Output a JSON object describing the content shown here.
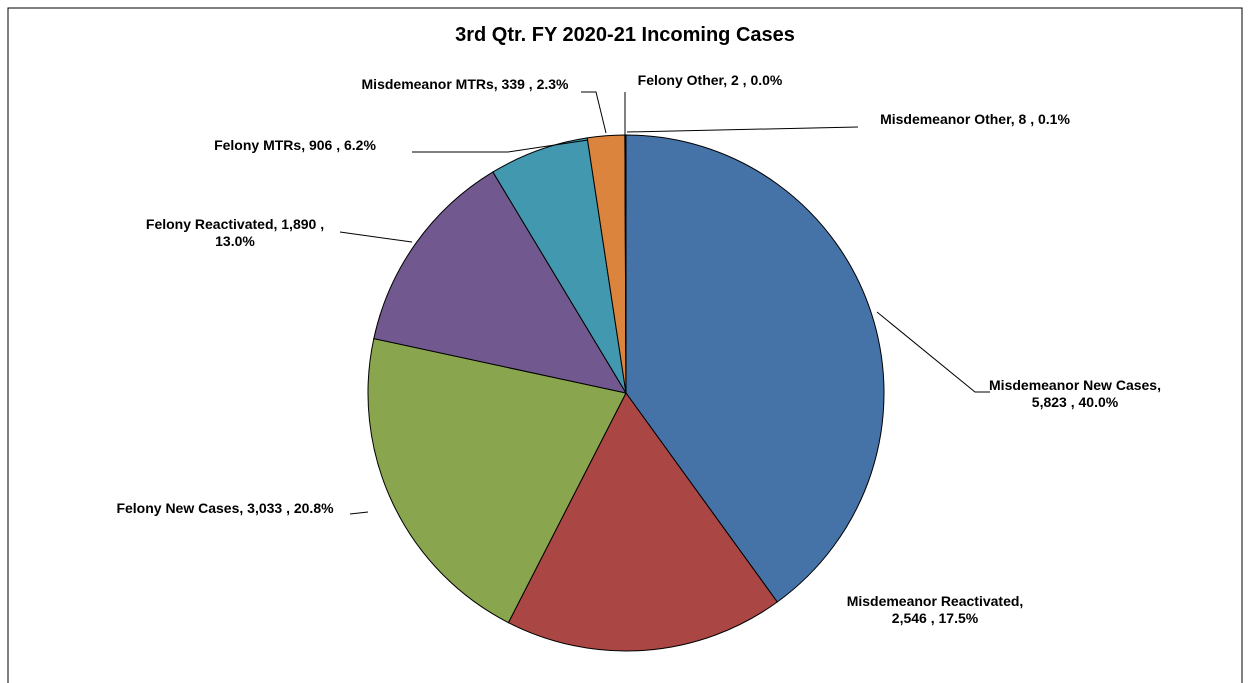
{
  "chart_data": {
    "type": "pie",
    "title": "3rd Qtr. FY 2020-21 Incoming Cases",
    "values": [
      5823,
      2546,
      3033,
      1890,
      906,
      339,
      2,
      8
    ],
    "value_labels": [
      "Misdemeanor New Cases, 5,823 , 40.0%",
      "Misdemeanor Reactivated, 2,546 , 17.5%",
      "Felony  New Cases, 3,033 , 20.8%",
      "Felony  Reactivated, 1,890 , 13.0%",
      "Felony  MTRs, 906 , 6.2%",
      "Misdemeanor MTRs, 339 , 2.3%",
      "Felony  Other, 2 , 0.0%",
      "Misdemeanor Other, 8 , 0.1%"
    ],
    "colors": [
      "#4572a7",
      "#aa4643",
      "#89a54e",
      "#71588f",
      "#4198af",
      "#db843d",
      "#93a9cf",
      "#b9cd96"
    ]
  }
}
